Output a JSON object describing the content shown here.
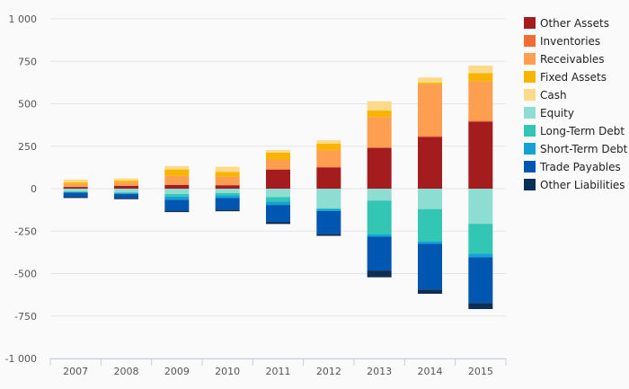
{
  "chart_data": {
    "type": "bar",
    "stacked": true,
    "title": "",
    "xlabel": "",
    "ylabel": "",
    "ylim": [
      -1000,
      1000
    ],
    "yticks": [
      1000,
      750,
      500,
      250,
      0,
      -250,
      -500,
      -750,
      -1000
    ],
    "ytick_labels": [
      "1 000",
      "750",
      "500",
      "250",
      "0",
      "-250",
      "-500",
      "-750",
      "-1 000"
    ],
    "grid": true,
    "legend_position": "right",
    "categories": [
      "2007",
      "2008",
      "2009",
      "2010",
      "2011",
      "2012",
      "2013",
      "2014",
      "2015"
    ],
    "series": [
      {
        "name": "Other Assets",
        "color": "#a51c1f",
        "values": [
          10,
          17,
          22,
          20,
          112,
          125,
          240,
          305,
          395
        ]
      },
      {
        "name": "Inventories",
        "color": "#f26b32",
        "values": [
          2,
          2,
          3,
          3,
          4,
          4,
          5,
          5,
          5
        ]
      },
      {
        "name": "Receivables",
        "color": "#fd9e50",
        "values": [
          15,
          17,
          50,
          48,
          56,
          98,
          177,
          305,
          233
        ]
      },
      {
        "name": "Fixed Assets",
        "color": "#f7b500",
        "values": [
          10,
          11,
          38,
          28,
          40,
          38,
          38,
          10,
          47
        ]
      },
      {
        "name": "Cash",
        "color": "#fdd98a",
        "values": [
          17,
          13,
          20,
          30,
          16,
          20,
          55,
          30,
          45
        ]
      },
      {
        "name": "Equity",
        "color": "#8dddd2",
        "values": [
          -16,
          -22,
          -32,
          -26,
          -50,
          -115,
          -70,
          -120,
          -207
        ]
      },
      {
        "name": "Long-Term Debt",
        "color": "#34c6b4",
        "values": [
          -4,
          -5,
          -15,
          -14,
          -26,
          -6,
          -200,
          -190,
          -175
        ]
      },
      {
        "name": "Short-Term Debt",
        "color": "#12a3d4",
        "values": [
          -3,
          -3,
          -18,
          -15,
          -20,
          -11,
          -12,
          -14,
          -22
        ]
      },
      {
        "name": "Trade Payables",
        "color": "#0057b1",
        "values": [
          -25,
          -25,
          -65,
          -68,
          -100,
          -134,
          -200,
          -270,
          -270
        ]
      },
      {
        "name": "Other Liabilities",
        "color": "#0d2e55",
        "values": [
          -7,
          -7,
          -8,
          -10,
          -12,
          -12,
          -40,
          -25,
          -35
        ]
      }
    ]
  }
}
